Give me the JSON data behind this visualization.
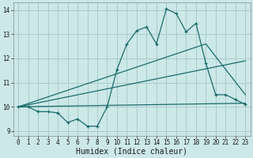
{
  "xlabel": "Humidex (Indice chaleur)",
  "bg_color": "#cce8e8",
  "grid_color": "#aacccc",
  "line_color": "#1a6b6b",
  "xlim": [
    -0.5,
    23.5
  ],
  "ylim": [
    8.8,
    14.3
  ],
  "xticks": [
    0,
    1,
    2,
    3,
    4,
    5,
    6,
    7,
    8,
    9,
    10,
    11,
    12,
    13,
    14,
    15,
    16,
    17,
    18,
    19,
    20,
    21,
    22,
    23
  ],
  "yticks": [
    9,
    10,
    11,
    12,
    13,
    14
  ],
  "series_main": [
    [
      0,
      10.0
    ],
    [
      1,
      10.0
    ],
    [
      2,
      9.8
    ],
    [
      3,
      9.8
    ],
    [
      4,
      9.75
    ],
    [
      5,
      9.35
    ],
    [
      6,
      9.5
    ],
    [
      7,
      9.2
    ],
    [
      8,
      9.2
    ],
    [
      9,
      10.0
    ],
    [
      10,
      11.55
    ],
    [
      11,
      12.6
    ],
    [
      12,
      13.15
    ],
    [
      13,
      13.3
    ],
    [
      14,
      12.6
    ],
    [
      15,
      14.05
    ],
    [
      16,
      13.85
    ],
    [
      17,
      13.1
    ],
    [
      18,
      13.45
    ],
    [
      19,
      11.8
    ],
    [
      20,
      10.5
    ],
    [
      21,
      10.5
    ],
    [
      22,
      10.3
    ],
    [
      23,
      10.1
    ]
  ],
  "series_line1": [
    [
      0,
      10.0
    ],
    [
      23,
      10.15
    ]
  ],
  "series_line2": [
    [
      0,
      10.0
    ],
    [
      23,
      11.9
    ]
  ],
  "series_line3": [
    [
      0,
      10.0
    ],
    [
      19,
      12.6
    ],
    [
      23,
      10.5
    ]
  ]
}
